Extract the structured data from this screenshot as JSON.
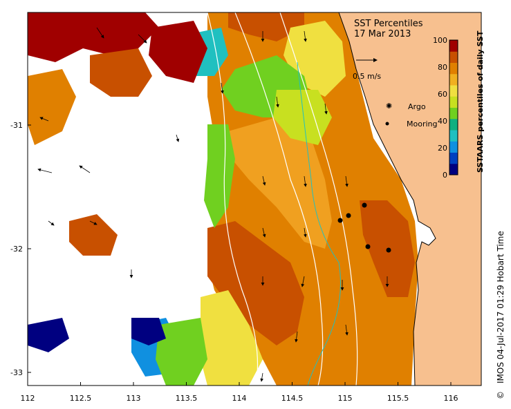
{
  "title": "SST Percentiles",
  "date": "17 Mar 2013",
  "colorbar": {
    "label": "SSTAARS percentiles of daily SST",
    "ticks": [
      "0",
      "20",
      "40",
      "60",
      "80",
      "100"
    ],
    "colors": [
      "#000080",
      "#0040c0",
      "#1090e0",
      "#20c0c0",
      "#10b080",
      "#70d020",
      "#c8e020",
      "#f0e040",
      "#f0b020",
      "#e08000",
      "#c85000",
      "#a00000"
    ]
  },
  "scale_arrow": {
    "label": "0.5 m/s"
  },
  "legend": [
    {
      "label": "Argo",
      "color": "#ff00ff"
    },
    {
      "label": "Mooring",
      "color": "#000000"
    }
  ],
  "axes": {
    "x_labels": [
      "112",
      "112.5",
      "113",
      "113.5",
      "114",
      "114.5",
      "115",
      "115.5",
      "116"
    ],
    "y_labels": [
      "-31",
      "-32",
      "-33"
    ]
  },
  "credit": "IMOS 04-Jul-2017 01:29 Hobart Time",
  "copyright_symbol": "©",
  "land_color": "#f7c08f",
  "colors": {
    "deep_red": "#a00000",
    "red": "#c85000",
    "orange": "#e08000",
    "light_orange": "#f0a020",
    "yellow": "#f0e040",
    "green": "#70d020",
    "light_green": "#c8e020",
    "teal": "#20c0c0",
    "blue": "#1090e0",
    "navy": "#000080"
  }
}
